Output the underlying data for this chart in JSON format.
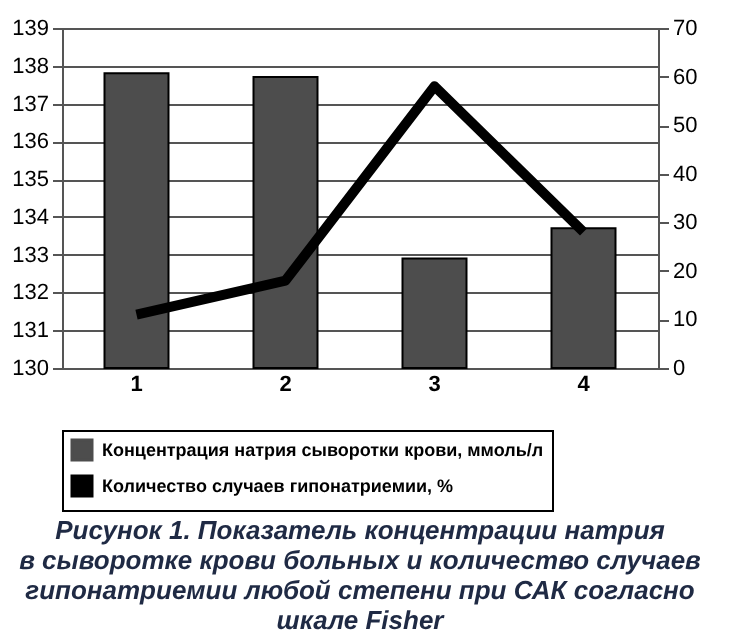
{
  "chart_data": {
    "type": "bar",
    "title": [
      "Рисунок 1. Показатель концентрации натрия",
      "в сыворотке крови больных и количество случаев",
      "гипонатриемии любой степени при САК согласно",
      "шкале Fisher"
    ],
    "categories": [
      "1",
      "2",
      "3",
      "4"
    ],
    "series": [
      {
        "name": "Концентрация натрия сыворотки крови, ммоль/л",
        "color": "#4d4d4d",
        "values": [
          137.8,
          137.7,
          132.9,
          133.7
        ]
      },
      {
        "name": "Количество случаев гипонатриемии, %",
        "type": "line",
        "axis": "y2",
        "color": "#000000",
        "values": [
          11,
          18,
          58,
          28
        ]
      }
    ],
    "ylim": [
      130,
      139
    ],
    "yticks": [
      130,
      131,
      132,
      133,
      134,
      135,
      136,
      137,
      138,
      139
    ],
    "y2lim": [
      0,
      70
    ],
    "y2ticks": [
      0,
      10,
      20,
      30,
      40,
      50,
      60,
      70
    ],
    "grid": "y",
    "legend": "bottom"
  }
}
